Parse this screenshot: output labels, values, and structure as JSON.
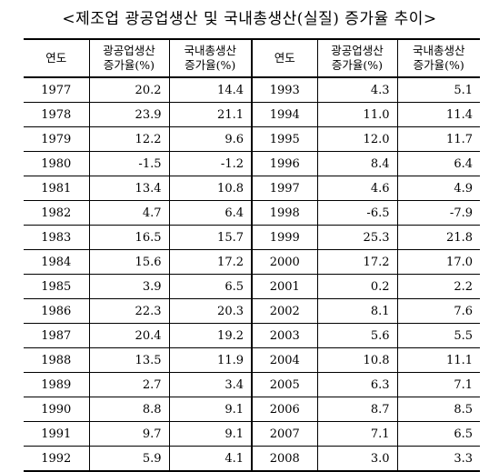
{
  "title": "<제조업 광공업생산 및 국내총생산(실질) 증가율 추이>",
  "headers": {
    "year": "연도",
    "industrial_line1": "광공업생산",
    "industrial_line2": "증가율(%)",
    "gdp_line1": "국내총생산",
    "gdp_line2": "증가율(%)"
  },
  "rows": [
    {
      "y1": "1977",
      "a1": "20.2",
      "b1": "14.4",
      "y2": "1993",
      "a2": "4.3",
      "b2": "5.1"
    },
    {
      "y1": "1978",
      "a1": "23.9",
      "b1": "21.1",
      "y2": "1994",
      "a2": "11.0",
      "b2": "11.4"
    },
    {
      "y1": "1979",
      "a1": "12.2",
      "b1": "9.6",
      "y2": "1995",
      "a2": "12.0",
      "b2": "11.7"
    },
    {
      "y1": "1980",
      "a1": "-1.5",
      "b1": "-1.2",
      "y2": "1996",
      "a2": "8.4",
      "b2": "6.4"
    },
    {
      "y1": "1981",
      "a1": "13.4",
      "b1": "10.8",
      "y2": "1997",
      "a2": "4.6",
      "b2": "4.9"
    },
    {
      "y1": "1982",
      "a1": "4.7",
      "b1": "6.4",
      "y2": "1998",
      "a2": "-6.5",
      "b2": "-7.9"
    },
    {
      "y1": "1983",
      "a1": "16.5",
      "b1": "15.7",
      "y2": "1999",
      "a2": "25.3",
      "b2": "21.8"
    },
    {
      "y1": "1984",
      "a1": "15.6",
      "b1": "17.2",
      "y2": "2000",
      "a2": "17.2",
      "b2": "17.0"
    },
    {
      "y1": "1985",
      "a1": "3.9",
      "b1": "6.5",
      "y2": "2001",
      "a2": "0.2",
      "b2": "2.2"
    },
    {
      "y1": "1986",
      "a1": "22.3",
      "b1": "20.3",
      "y2": "2002",
      "a2": "8.1",
      "b2": "7.6"
    },
    {
      "y1": "1987",
      "a1": "20.4",
      "b1": "19.2",
      "y2": "2003",
      "a2": "5.6",
      "b2": "5.5"
    },
    {
      "y1": "1988",
      "a1": "13.5",
      "b1": "11.9",
      "y2": "2004",
      "a2": "10.8",
      "b2": "11.1"
    },
    {
      "y1": "1989",
      "a1": "2.7",
      "b1": "3.4",
      "y2": "2005",
      "a2": "6.3",
      "b2": "7.1"
    },
    {
      "y1": "1990",
      "a1": "8.8",
      "b1": "9.1",
      "y2": "2006",
      "a2": "8.7",
      "b2": "8.5"
    },
    {
      "y1": "1991",
      "a1": "9.7",
      "b1": "9.1",
      "y2": "2007",
      "a2": "7.1",
      "b2": "6.5"
    },
    {
      "y1": "1992",
      "a1": "5.9",
      "b1": "4.1",
      "y2": "2008",
      "a2": "3.0",
      "b2": "3.3"
    }
  ]
}
